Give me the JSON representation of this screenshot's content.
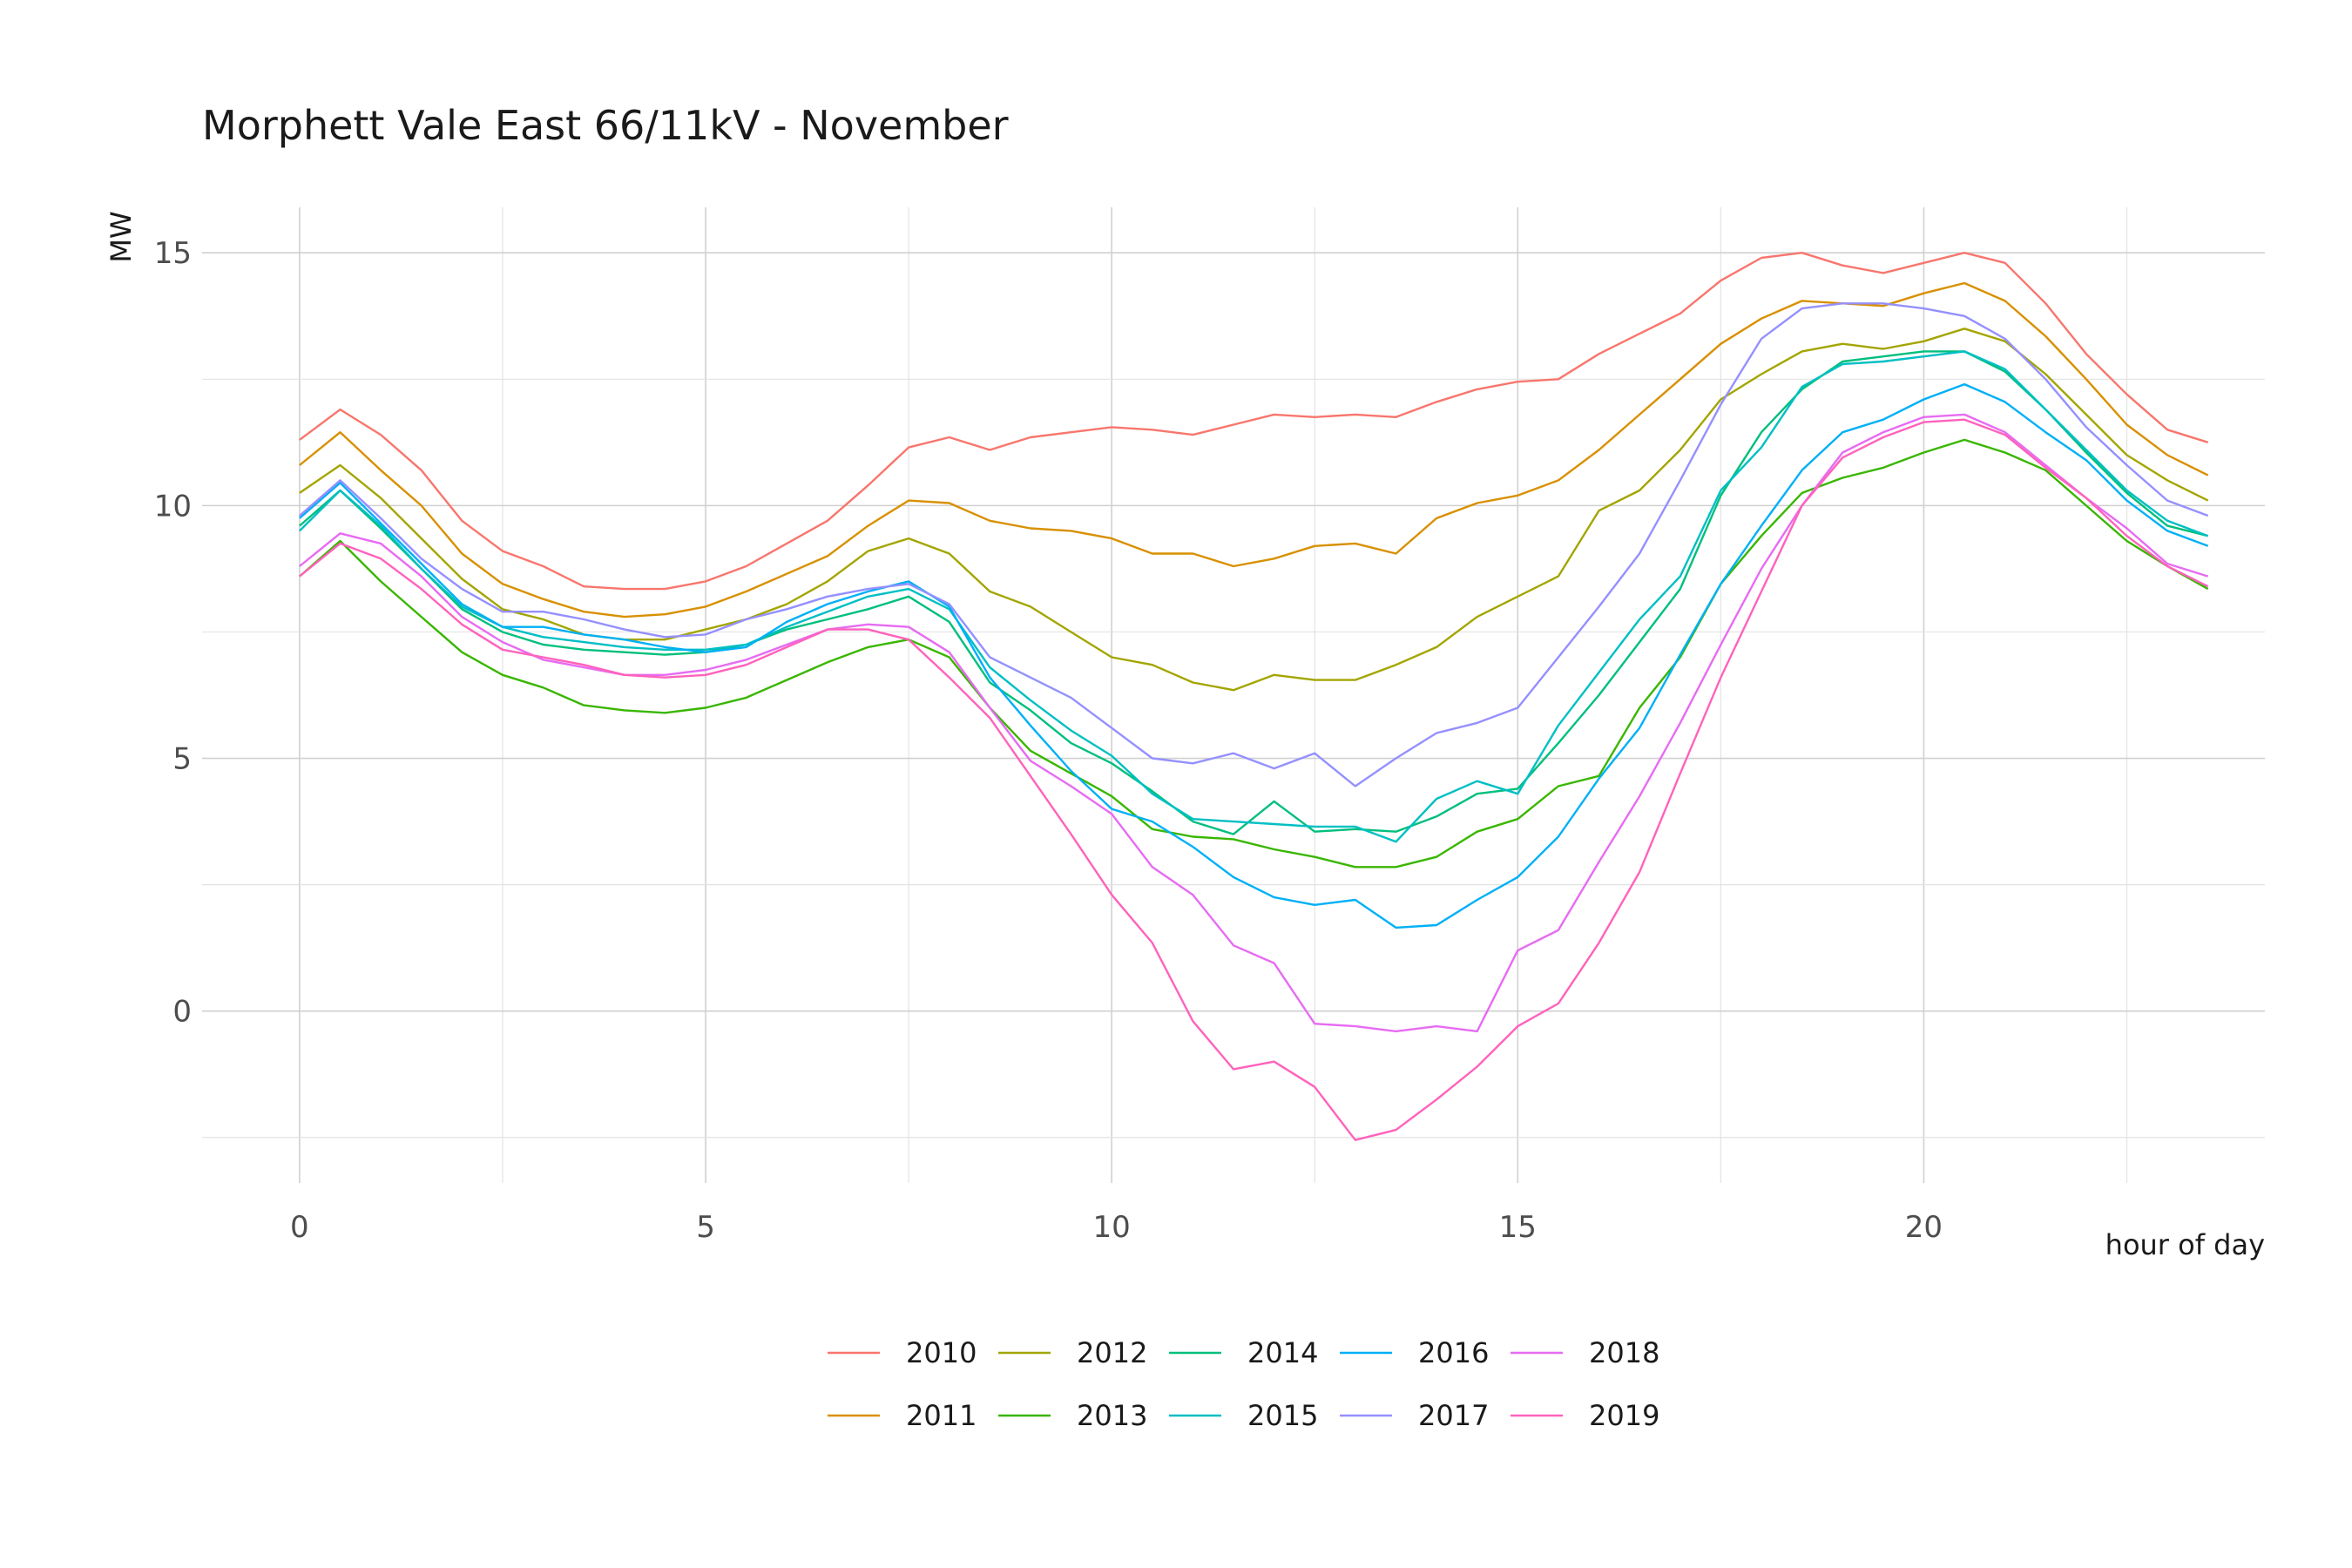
{
  "chart_data": {
    "type": "line",
    "title": "Morphett Vale East 66/11kV - November",
    "xlabel": "hour of day",
    "ylabel": "MW",
    "xlim": [
      -1.2,
      24.2
    ],
    "ylim": [
      -3.4,
      15.9
    ],
    "x_ticks": [
      0,
      5,
      10,
      15,
      20
    ],
    "y_ticks": [
      0,
      5,
      10,
      15
    ],
    "grid": true,
    "legend_position": "bottom",
    "x": [
      0,
      0.5,
      1,
      1.5,
      2,
      2.5,
      3,
      3.5,
      4,
      4.5,
      5,
      5.5,
      6,
      6.5,
      7,
      7.5,
      8,
      8.5,
      9,
      9.5,
      10,
      10.5,
      11,
      11.5,
      12,
      12.5,
      13,
      13.5,
      14,
      14.5,
      15,
      15.5,
      16,
      16.5,
      17,
      17.5,
      18,
      18.5,
      19,
      19.5,
      20,
      20.5,
      21,
      21.5,
      22,
      22.5,
      23,
      23.5
    ],
    "series": [
      {
        "name": "2010",
        "color": "#F8766D",
        "values": [
          11.3,
          11.9,
          11.4,
          10.7,
          9.7,
          9.1,
          8.8,
          8.4,
          8.35,
          8.35,
          8.5,
          8.8,
          9.25,
          9.7,
          10.4,
          11.15,
          11.35,
          11.1,
          11.35,
          11.45,
          11.55,
          11.5,
          11.4,
          11.6,
          11.8,
          11.75,
          11.8,
          11.75,
          12.05,
          12.3,
          12.45,
          12.5,
          13.0,
          13.4,
          13.8,
          14.45,
          14.9,
          15.0,
          14.75,
          14.6,
          14.8,
          15.0,
          14.8,
          14.0,
          13.0,
          12.2,
          11.5,
          11.25
        ]
      },
      {
        "name": "2011",
        "color": "#D89000",
        "values": [
          10.8,
          11.45,
          10.7,
          10.0,
          9.05,
          8.45,
          8.15,
          7.9,
          7.8,
          7.85,
          8.0,
          8.3,
          8.65,
          9.0,
          9.6,
          10.1,
          10.05,
          9.7,
          9.55,
          9.5,
          9.35,
          9.05,
          9.05,
          8.8,
          8.95,
          9.2,
          9.25,
          9.05,
          9.75,
          10.05,
          10.2,
          10.5,
          11.1,
          11.8,
          12.5,
          13.2,
          13.7,
          14.05,
          14.0,
          13.95,
          14.2,
          14.4,
          14.05,
          13.35,
          12.5,
          11.6,
          11.0,
          10.6
        ]
      },
      {
        "name": "2012",
        "color": "#A3A500",
        "values": [
          10.25,
          10.8,
          10.15,
          9.35,
          8.55,
          7.95,
          7.75,
          7.45,
          7.35,
          7.35,
          7.55,
          7.75,
          8.05,
          8.5,
          9.1,
          9.35,
          9.05,
          8.3,
          8.0,
          7.5,
          7.0,
          6.85,
          6.5,
          6.35,
          6.65,
          6.55,
          6.55,
          6.85,
          7.2,
          7.8,
          8.2,
          8.6,
          9.9,
          10.3,
          11.1,
          12.1,
          12.6,
          13.05,
          13.2,
          13.1,
          13.25,
          13.5,
          13.25,
          12.6,
          11.8,
          11.0,
          10.5,
          10.1
        ]
      },
      {
        "name": "2013",
        "color": "#39B600",
        "values": [
          8.6,
          9.3,
          8.5,
          7.8,
          7.1,
          6.65,
          6.4,
          6.05,
          5.95,
          5.9,
          6.0,
          6.2,
          6.55,
          6.9,
          7.2,
          7.35,
          7.0,
          6.0,
          5.15,
          4.7,
          4.25,
          3.6,
          3.45,
          3.4,
          3.2,
          3.05,
          2.85,
          2.85,
          3.05,
          3.55,
          3.8,
          4.45,
          4.65,
          6.0,
          7.0,
          8.45,
          9.4,
          10.25,
          10.55,
          10.75,
          11.05,
          11.3,
          11.05,
          10.7,
          10.0,
          9.3,
          8.8,
          8.35
        ]
      },
      {
        "name": "2014",
        "color": "#00BF7D",
        "values": [
          9.6,
          10.3,
          9.55,
          8.75,
          7.95,
          7.5,
          7.25,
          7.15,
          7.1,
          7.05,
          7.1,
          7.25,
          7.55,
          7.75,
          7.95,
          8.2,
          7.7,
          6.5,
          5.95,
          5.3,
          4.9,
          4.35,
          3.75,
          3.5,
          4.15,
          3.55,
          3.6,
          3.55,
          3.85,
          4.3,
          4.4,
          5.3,
          6.25,
          7.3,
          8.35,
          10.2,
          11.45,
          12.3,
          12.85,
          12.95,
          13.05,
          13.05,
          12.65,
          11.9,
          11.05,
          10.25,
          9.6,
          9.4
        ]
      },
      {
        "name": "2015",
        "color": "#00BFC4",
        "values": [
          9.5,
          10.3,
          9.6,
          8.75,
          8.0,
          7.6,
          7.4,
          7.3,
          7.2,
          7.15,
          7.15,
          7.25,
          7.6,
          7.9,
          8.2,
          8.35,
          7.95,
          6.8,
          6.15,
          5.55,
          5.05,
          4.3,
          3.8,
          3.75,
          3.7,
          3.65,
          3.65,
          3.35,
          4.2,
          4.55,
          4.3,
          5.65,
          6.7,
          7.75,
          8.6,
          10.3,
          11.15,
          12.35,
          12.8,
          12.85,
          12.95,
          13.05,
          12.7,
          11.9,
          11.1,
          10.3,
          9.7,
          9.4
        ]
      },
      {
        "name": "2016",
        "color": "#00B0F6",
        "values": [
          9.75,
          10.45,
          9.65,
          8.85,
          8.05,
          7.6,
          7.6,
          7.45,
          7.35,
          7.2,
          7.1,
          7.2,
          7.7,
          8.05,
          8.3,
          8.5,
          8.0,
          6.6,
          5.65,
          4.75,
          4.0,
          3.75,
          3.25,
          2.65,
          2.25,
          2.1,
          2.2,
          1.65,
          1.7,
          2.2,
          2.65,
          3.45,
          4.6,
          5.6,
          7.05,
          8.45,
          9.6,
          10.7,
          11.45,
          11.7,
          12.1,
          12.4,
          12.05,
          11.45,
          10.9,
          10.1,
          9.5,
          9.2
        ]
      },
      {
        "name": "2017",
        "color": "#9590FF",
        "values": [
          9.8,
          10.5,
          9.75,
          8.95,
          8.35,
          7.9,
          7.9,
          7.75,
          7.55,
          7.4,
          7.45,
          7.75,
          7.95,
          8.2,
          8.35,
          8.45,
          8.05,
          7.0,
          6.6,
          6.2,
          5.6,
          5.0,
          4.9,
          5.1,
          4.8,
          5.1,
          4.45,
          5.0,
          5.5,
          5.7,
          6.0,
          7.0,
          8.0,
          9.05,
          10.5,
          12.0,
          13.3,
          13.9,
          14.0,
          14.0,
          13.9,
          13.75,
          13.3,
          12.5,
          11.55,
          10.8,
          10.1,
          9.8
        ]
      },
      {
        "name": "2018",
        "color": "#E76BF3",
        "values": [
          8.8,
          9.45,
          9.25,
          8.6,
          7.8,
          7.3,
          6.95,
          6.8,
          6.65,
          6.65,
          6.75,
          6.95,
          7.25,
          7.55,
          7.65,
          7.6,
          7.1,
          6.0,
          4.95,
          4.45,
          3.9,
          2.85,
          2.3,
          1.3,
          0.95,
          -0.25,
          -0.3,
          -0.4,
          -0.3,
          -0.4,
          1.2,
          1.6,
          2.95,
          4.25,
          5.7,
          7.25,
          8.75,
          10.0,
          11.05,
          11.45,
          11.75,
          11.8,
          11.45,
          10.8,
          10.15,
          9.55,
          8.85,
          8.6
        ]
      },
      {
        "name": "2019",
        "color": "#FF62BC",
        "values": [
          8.6,
          9.25,
          8.95,
          8.35,
          7.65,
          7.15,
          7.0,
          6.85,
          6.65,
          6.6,
          6.65,
          6.85,
          7.2,
          7.55,
          7.55,
          7.35,
          6.6,
          5.8,
          4.65,
          3.5,
          2.3,
          1.35,
          -0.2,
          -1.15,
          -1.0,
          -1.5,
          -2.55,
          -2.35,
          -1.75,
          -1.1,
          -0.3,
          0.15,
          1.35,
          2.75,
          4.7,
          6.6,
          8.3,
          10.0,
          10.95,
          11.35,
          11.65,
          11.7,
          11.4,
          10.75,
          10.15,
          9.4,
          8.8,
          8.4
        ]
      }
    ]
  }
}
